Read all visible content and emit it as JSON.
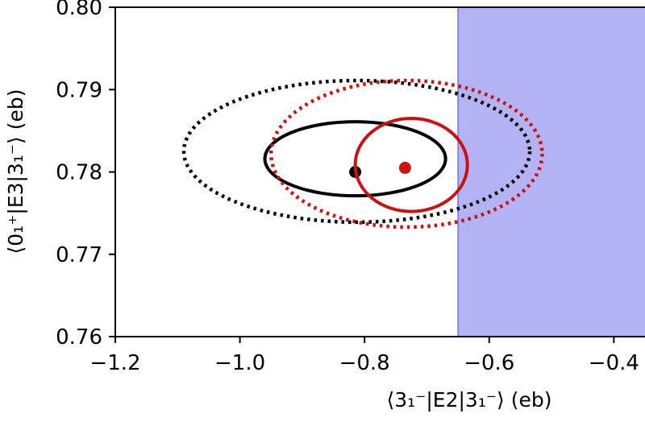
{
  "chart_data": {
    "type": "scatter",
    "title": "",
    "xlabel": "⟨3₁⁻|E2|3₁⁻⟩ (eb)",
    "ylabel": "⟨0₁⁺|E3|3₁⁻⟩ (eb)",
    "xlim": [
      -1.2,
      -0.35
    ],
    "ylim": [
      0.76,
      0.8
    ],
    "xticks": [
      -1.2,
      -1.0,
      -0.8,
      -0.6,
      -0.4
    ],
    "yticks": [
      0.76,
      0.77,
      0.78,
      0.79,
      0.8
    ],
    "xtick_labels": [
      "−1.2",
      "−1.0",
      "−0.8",
      "−0.6",
      "−0.4"
    ],
    "ytick_labels": [
      "0.76",
      "0.77",
      "0.78",
      "0.79",
      "0.80"
    ],
    "grid": false,
    "shaded_region": {
      "x_from": -0.65,
      "x_to": -0.35,
      "color": "#b3b3f5",
      "edge": "#7070e0"
    },
    "series": [
      {
        "color": "#000000",
        "center": [
          -0.815,
          0.78
        ],
        "ellipses": [
          {
            "style": "solid",
            "x": [
              -0.96,
              -0.67
            ],
            "y": [
              0.7771,
              0.7861
            ]
          },
          {
            "style": "dotted",
            "x": [
              -1.09,
              -0.535
            ],
            "y": [
              0.7739,
              0.7911
            ]
          }
        ]
      },
      {
        "color": "#cc1111",
        "center": [
          -0.735,
          0.7805
        ],
        "ellipses": [
          {
            "style": "solid",
            "x": [
              -0.815,
              -0.635
            ],
            "y": [
              0.7752,
              0.7865
            ]
          },
          {
            "style": "dotted",
            "x": [
              -0.95,
              -0.515
            ],
            "y": [
              0.7733,
              0.7911
            ]
          }
        ]
      }
    ]
  }
}
